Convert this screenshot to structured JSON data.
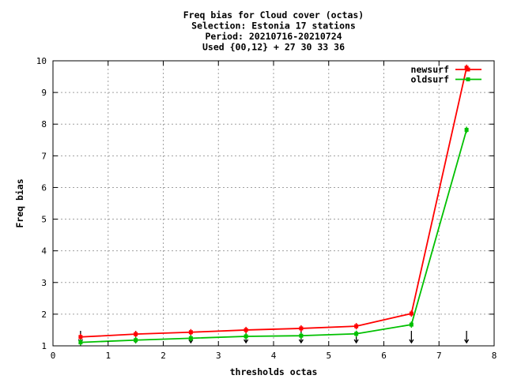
{
  "chart_data": {
    "type": "line",
    "title_lines": [
      "Freq bias  for Cloud cover (octas)",
      "Selection: Estonia     17 stations",
      "Period: 20210716-20210724",
      "Used {00,12} + 27 30 33 36"
    ],
    "xlabel": "thresholds octas",
    "ylabel": "Freq bias",
    "xlim": [
      0,
      8
    ],
    "ylim": [
      1,
      10
    ],
    "xticks": [
      0,
      1,
      2,
      3,
      4,
      5,
      6,
      7,
      8
    ],
    "yticks": [
      1,
      2,
      3,
      4,
      5,
      6,
      7,
      8,
      9,
      10
    ],
    "grid": true,
    "legend_position": "top-right",
    "x": [
      0.5,
      1.5,
      2.5,
      3.5,
      4.5,
      5.5,
      6.5,
      7.5
    ],
    "series": [
      {
        "name": "newsurf",
        "color": "#ff0000",
        "values": [
          1.28,
          1.37,
          1.43,
          1.5,
          1.55,
          1.62,
          2.02,
          9.78
        ]
      },
      {
        "name": "oldsurf",
        "color": "#00c000",
        "values": [
          1.11,
          1.18,
          1.24,
          1.3,
          1.32,
          1.38,
          1.67,
          7.82
        ]
      }
    ],
    "markers": {
      "style": "down-arrow",
      "x": [
        0.5,
        1.5,
        2.5,
        3.5,
        4.5,
        5.5,
        6.5,
        7.5
      ]
    }
  }
}
